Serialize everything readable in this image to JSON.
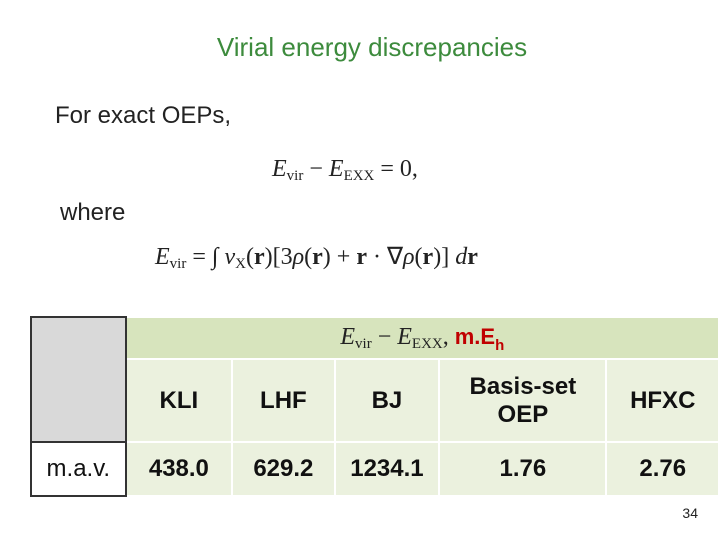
{
  "slide": {
    "title": "Virial energy discrepancies",
    "intro": "For exact OEPs,",
    "equation_1": [
      "E",
      "vir",
      " − ",
      "E",
      "EXX",
      " = 0,"
    ],
    "where": "where",
    "equation_2": [
      "E",
      "vir",
      " = ∫ ",
      "v",
      "X",
      "(",
      "r",
      ")[3",
      "ρ",
      "(",
      "r",
      ") + ",
      "r",
      " · ∇",
      "ρ",
      "(",
      "r",
      ")] ",
      "d",
      "r"
    ],
    "page_number": "34"
  },
  "table": {
    "header": [
      "E",
      "vir",
      " − ",
      "E",
      "EXX",
      ", ",
      "m.E",
      "h"
    ],
    "columns": [
      "KLI",
      "LHF",
      "BJ",
      "Basis-set OEP",
      "HFXC"
    ],
    "rows": [
      [
        "m.a.v.",
        "438.0",
        "629.2",
        "1234.1",
        "1.76",
        "2.76"
      ]
    ]
  }
}
